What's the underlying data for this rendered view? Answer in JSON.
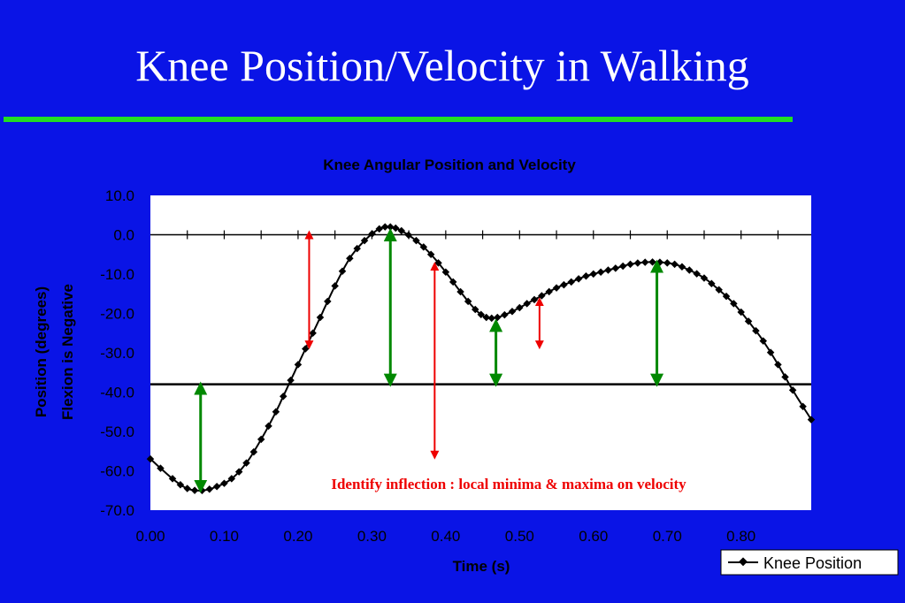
{
  "slide": {
    "title": "Knee Position/Velocity in Walking"
  },
  "colors": {
    "background": "#0a14e6",
    "rule": "#22dd22",
    "plot_area": "#ffffff",
    "curve": "#000000",
    "arrow_green": "#008800",
    "arrow_red": "#ee0000",
    "annotation": "#ee0000"
  },
  "chart_data": {
    "type": "line",
    "title": "Knee Angular Position and Velocity",
    "xlabel": "Time (s)",
    "ylabel_lines": [
      "Position (degrees)",
      "Flexion is Negative"
    ],
    "xlim": [
      0.0,
      0.895
    ],
    "ylim": [
      -70.0,
      10.0
    ],
    "x_ticks": [
      "0.00",
      "0.10",
      "0.20",
      "0.30",
      "0.40",
      "0.50",
      "0.60",
      "0.70",
      "0.80"
    ],
    "y_ticks": [
      "10.0",
      "0.0",
      "-10.0",
      "-20.0",
      "-30.0",
      "-40.0",
      "-50.0",
      "-60.0",
      "-70.0"
    ],
    "legend": {
      "label": "Knee Position",
      "placement": "bottom-right, outside"
    },
    "reference_line_y": -38,
    "annotation": "Identify inflection : local minima & maxima on velocity",
    "series": [
      {
        "name": "Knee Position",
        "points": [
          [
            0.0,
            -57.0
          ],
          [
            0.03,
            -62.0
          ],
          [
            0.05,
            -64.5
          ],
          [
            0.07,
            -65.0
          ],
          [
            0.09,
            -64.0
          ],
          [
            0.11,
            -62.0
          ],
          [
            0.13,
            -58.0
          ],
          [
            0.15,
            -52.0
          ],
          [
            0.17,
            -45.0
          ],
          [
            0.19,
            -37.0
          ],
          [
            0.21,
            -29.0
          ],
          [
            0.23,
            -21.0
          ],
          [
            0.25,
            -13.0
          ],
          [
            0.27,
            -6.0
          ],
          [
            0.29,
            -1.5
          ],
          [
            0.31,
            1.5
          ],
          [
            0.325,
            2.0
          ],
          [
            0.34,
            1.0
          ],
          [
            0.36,
            -1.5
          ],
          [
            0.38,
            -5.0
          ],
          [
            0.4,
            -9.5
          ],
          [
            0.42,
            -14.5
          ],
          [
            0.44,
            -19.0
          ],
          [
            0.455,
            -21.0
          ],
          [
            0.47,
            -21.0
          ],
          [
            0.49,
            -19.5
          ],
          [
            0.51,
            -17.5
          ],
          [
            0.53,
            -15.5
          ],
          [
            0.55,
            -13.5
          ],
          [
            0.57,
            -12.0
          ],
          [
            0.59,
            -10.5
          ],
          [
            0.61,
            -9.5
          ],
          [
            0.63,
            -8.5
          ],
          [
            0.65,
            -7.5
          ],
          [
            0.67,
            -7.0
          ],
          [
            0.69,
            -7.0
          ],
          [
            0.71,
            -7.5
          ],
          [
            0.73,
            -9.0
          ],
          [
            0.75,
            -11.0
          ],
          [
            0.77,
            -14.0
          ],
          [
            0.79,
            -17.5
          ],
          [
            0.81,
            -22.0
          ],
          [
            0.83,
            -27.0
          ],
          [
            0.85,
            -33.0
          ],
          [
            0.87,
            -39.5
          ],
          [
            0.895,
            -47.0
          ]
        ]
      }
    ],
    "arrows": [
      {
        "color": "green",
        "x": 0.068,
        "y_from": -39.0,
        "y_to": -64.0
      },
      {
        "color": "red",
        "x": 0.215,
        "y_from": 0.0,
        "y_to": -28.0
      },
      {
        "color": "green",
        "x": 0.325,
        "y_from": 0.0,
        "y_to": -37.0
      },
      {
        "color": "red",
        "x": 0.385,
        "y_from": -8.0,
        "y_to": -56.0
      },
      {
        "color": "green",
        "x": 0.468,
        "y_from": -23.0,
        "y_to": -37.0
      },
      {
        "color": "red",
        "x": 0.527,
        "y_from": -17.0,
        "y_to": -28.0
      },
      {
        "color": "green",
        "x": 0.686,
        "y_from": -8.0,
        "y_to": -37.0
      }
    ]
  }
}
